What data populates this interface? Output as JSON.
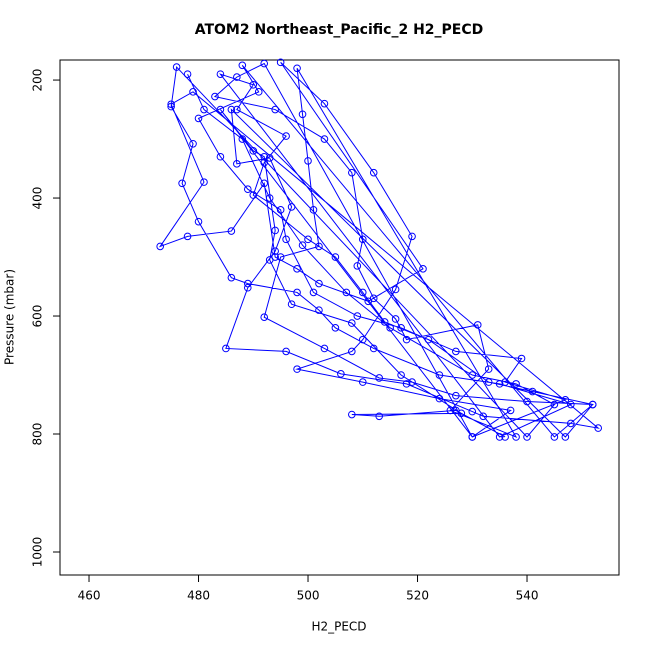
{
  "chart_data": {
    "type": "line",
    "title": "ATOM2 Northeast_Pacific_2 H2_PECD",
    "x_label": "H2_PECD",
    "y_label": "Pressure (mbar)",
    "color": "#0000ff",
    "markers": true,
    "xlim": [
      454.7,
      556.8
    ],
    "xticks": [
      460,
      480,
      500,
      520,
      540
    ],
    "ylim": [
      1039,
      166
    ],
    "yticks": [
      200,
      400,
      600,
      800,
      1000
    ],
    "x": [
      478,
      481,
      488,
      493,
      499,
      507,
      515,
      530,
      538,
      545,
      540,
      476,
      475,
      479,
      477,
      480,
      486,
      489,
      498,
      502,
      505,
      512,
      524,
      535,
      548,
      535,
      484,
      490,
      487,
      496,
      492,
      490,
      500,
      505,
      510,
      514,
      522,
      533,
      541,
      552,
      545,
      488,
      491,
      480,
      484,
      489,
      495,
      496,
      501,
      509,
      517,
      527,
      539,
      536,
      547,
      530,
      492,
      487,
      483,
      494,
      503,
      508,
      510,
      509,
      512,
      516,
      518,
      531,
      533,
      526,
      538,
      498,
      499,
      500,
      501,
      502,
      495,
      492,
      503,
      513,
      519,
      527,
      540,
      552,
      547,
      486,
      487,
      493,
      497,
      494,
      489,
      485,
      496,
      506,
      518,
      530,
      532,
      548,
      553,
      479,
      475,
      481,
      473,
      478,
      486,
      492,
      494,
      498,
      502,
      511,
      521,
      495,
      503,
      512,
      519,
      516,
      510,
      508,
      498,
      510,
      524,
      537,
      530,
      484,
      490,
      492,
      494,
      493,
      497,
      508,
      517,
      528,
      508,
      513,
      527,
      536
    ],
    "values": [
      190,
      250,
      300,
      400,
      480,
      560,
      620,
      700,
      715,
      750,
      805,
      178,
      245,
      308,
      375,
      440,
      535,
      545,
      560,
      590,
      620,
      655,
      700,
      715,
      750,
      805,
      190,
      208,
      250,
      295,
      340,
      395,
      470,
      500,
      560,
      610,
      640,
      712,
      728,
      750,
      805,
      175,
      220,
      265,
      330,
      385,
      420,
      470,
      560,
      600,
      620,
      660,
      672,
      712,
      742,
      805,
      172,
      195,
      228,
      250,
      300,
      357,
      470,
      515,
      570,
      605,
      640,
      615,
      690,
      760,
      805,
      180,
      258,
      337,
      420,
      482,
      500,
      602,
      655,
      705,
      712,
      735,
      745,
      750,
      805,
      250,
      342,
      332,
      415,
      490,
      552,
      655,
      660,
      698,
      715,
      762,
      770,
      782,
      790,
      220,
      241,
      373,
      482,
      465,
      456,
      375,
      500,
      520,
      545,
      575,
      520,
      170,
      240,
      357,
      465,
      555,
      640,
      660,
      690,
      712,
      740,
      760,
      805,
      250,
      320,
      330,
      455,
      505,
      580,
      612,
      700,
      765,
      767,
      770,
      760,
      805
    ]
  }
}
